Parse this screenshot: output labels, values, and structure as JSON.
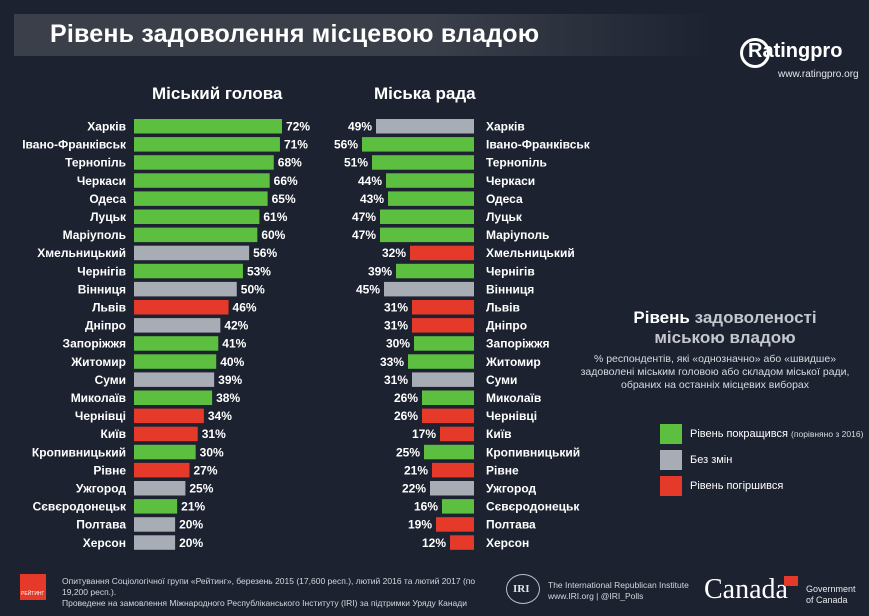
{
  "title": "Рівень задоволення місцевою владою",
  "brand": {
    "name": "Ratingpro",
    "url": "www.ratingpro.org"
  },
  "colors": {
    "improved": "#5cbf3f",
    "unchanged": "#a8acb5",
    "worsened": "#e53a2a"
  },
  "chart_data": [
    {
      "type": "bar",
      "title": "Міський голова",
      "orientation": "horizontal",
      "unit": "%",
      "categories": [
        "Харків",
        "Івано-Франківськ",
        "Тернопіль",
        "Черкаси",
        "Одеса",
        "Луцьк",
        "Маріуполь",
        "Хмельницький",
        "Чернігів",
        "Вінниця",
        "Львів",
        "Дніпро",
        "Запоріжжя",
        "Житомир",
        "Суми",
        "Миколаїв",
        "Чернівці",
        "Київ",
        "Кропивницький",
        "Рівне",
        "Ужгород",
        "Сєвєродонецьк",
        "Полтава",
        "Херсон"
      ],
      "values": [
        72,
        71,
        68,
        66,
        65,
        61,
        60,
        56,
        53,
        50,
        46,
        42,
        41,
        40,
        39,
        38,
        34,
        31,
        30,
        27,
        25,
        21,
        20,
        20
      ],
      "status": [
        "improved",
        "improved",
        "improved",
        "improved",
        "improved",
        "improved",
        "improved",
        "unchanged",
        "improved",
        "unchanged",
        "worsened",
        "unchanged",
        "improved",
        "improved",
        "unchanged",
        "improved",
        "worsened",
        "worsened",
        "improved",
        "worsened",
        "unchanged",
        "improved",
        "unchanged",
        "unchanged"
      ]
    },
    {
      "type": "bar",
      "title": "Міська рада",
      "orientation": "horizontal",
      "unit": "%",
      "categories": [
        "Харків",
        "Івано-Франківськ",
        "Тернопіль",
        "Черкаси",
        "Одеса",
        "Луцьк",
        "Маріуполь",
        "Хмельницький",
        "Чернігів",
        "Вінниця",
        "Львів",
        "Дніпро",
        "Запоріжжя",
        "Житомир",
        "Суми",
        "Миколаїв",
        "Чернівці",
        "Київ",
        "Кропивницький",
        "Рівне",
        "Ужгород",
        "Сєвєродонецьк",
        "Полтава",
        "Херсон"
      ],
      "values": [
        49,
        56,
        51,
        44,
        43,
        47,
        47,
        32,
        39,
        45,
        31,
        31,
        30,
        33,
        31,
        26,
        26,
        17,
        25,
        21,
        22,
        16,
        19,
        12
      ],
      "status": [
        "unchanged",
        "improved",
        "improved",
        "improved",
        "improved",
        "improved",
        "improved",
        "worsened",
        "improved",
        "unchanged",
        "worsened",
        "worsened",
        "improved",
        "improved",
        "unchanged",
        "improved",
        "worsened",
        "worsened",
        "improved",
        "worsened",
        "unchanged",
        "improved",
        "worsened",
        "worsened"
      ]
    }
  ],
  "legend": {
    "heading_white": "Рівень",
    "heading_grey": "задоволеності міською владою",
    "subtitle": "% респондентів, які «однозначно» або «швидше» задоволені міським головою або складом міської ради, обраних на останніх місцевих виборах",
    "items": [
      {
        "key": "improved",
        "label": "Рівень покращився",
        "note": "(порівняно з 2016)"
      },
      {
        "key": "unchanged",
        "label": "Без змін",
        "note": ""
      },
      {
        "key": "worsened",
        "label": "Рівень погіршився",
        "note": ""
      }
    ]
  },
  "footer": {
    "logo_text": "РЕЙТИНГ",
    "line1": "Опитування Соціологічної групи «Рейтинг», березень 2015 (17,600 респ.), лютий 2016 та лютий 2017 (по 19,200 респ.).",
    "line2": "Проведене на замовлення Міжнародного Республіканського Інституту (IRI) за підтримки Уряду Канади",
    "iri_logo": "IRI",
    "iri_line1": "The International Republican Institute",
    "iri_line2": "www.IRI.org | @IRI_Polls",
    "canada": "Canada",
    "gov_line1": "Government",
    "gov_line2": "of Canada"
  }
}
